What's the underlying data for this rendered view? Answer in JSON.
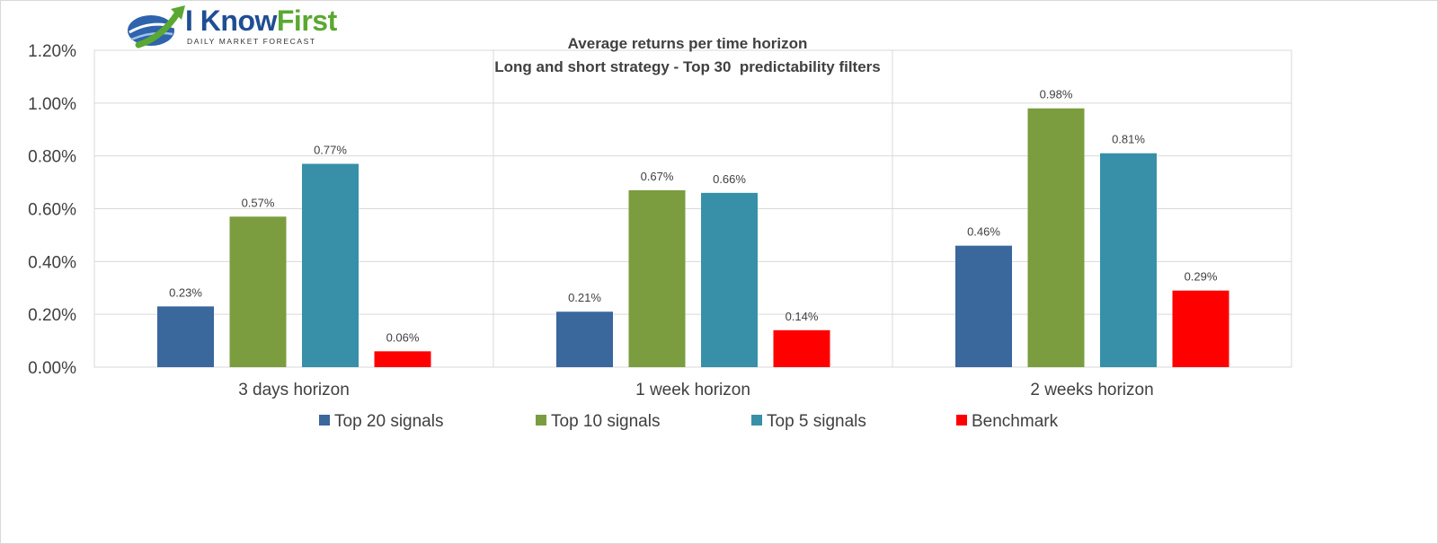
{
  "logo": {
    "brand_main": "I Know",
    "brand_accent": "First",
    "tagline": "DAILY MARKET FORECAST",
    "colors": {
      "main": "#1f4e93",
      "accent": "#5aa832"
    }
  },
  "chart_data": {
    "type": "bar",
    "title": "Average returns per time horizon",
    "subtitle": "Long and short strategy - Top 30  predictability filters",
    "categories": [
      "3 days horizon",
      "1 week horizon",
      "2 weeks horizon"
    ],
    "series": [
      {
        "name": "Top 20 signals",
        "color": "#3a679c",
        "values": [
          0.23,
          0.21,
          0.46
        ],
        "labels": [
          "0.23%",
          "0.21%",
          "0.46%"
        ]
      },
      {
        "name": "Top 10 signals",
        "color": "#7b9d3f",
        "values": [
          0.57,
          0.67,
          0.98
        ],
        "labels": [
          "0.57%",
          "0.67%",
          "0.98%"
        ]
      },
      {
        "name": "Top 5 signals",
        "color": "#3790a8",
        "values": [
          0.77,
          0.66,
          0.81
        ],
        "labels": [
          "0.77%",
          "0.66%",
          "0.81%"
        ]
      },
      {
        "name": "Benchmark",
        "color": "#ff0000",
        "values": [
          0.06,
          0.14,
          0.29
        ],
        "labels": [
          "0.06%",
          "0.14%",
          "0.29%"
        ]
      }
    ],
    "ylim": [
      0,
      1.2
    ],
    "yticks": [
      {
        "value": 0.0,
        "label": "0.00%"
      },
      {
        "value": 0.2,
        "label": "0.20%"
      },
      {
        "value": 0.4,
        "label": "0.40%"
      },
      {
        "value": 0.6,
        "label": "0.60%"
      },
      {
        "value": 0.8,
        "label": "0.80%"
      },
      {
        "value": 1.0,
        "label": "1.00%"
      },
      {
        "value": 1.2,
        "label": "1.20%"
      }
    ],
    "grid": true,
    "legend_position": "bottom"
  }
}
